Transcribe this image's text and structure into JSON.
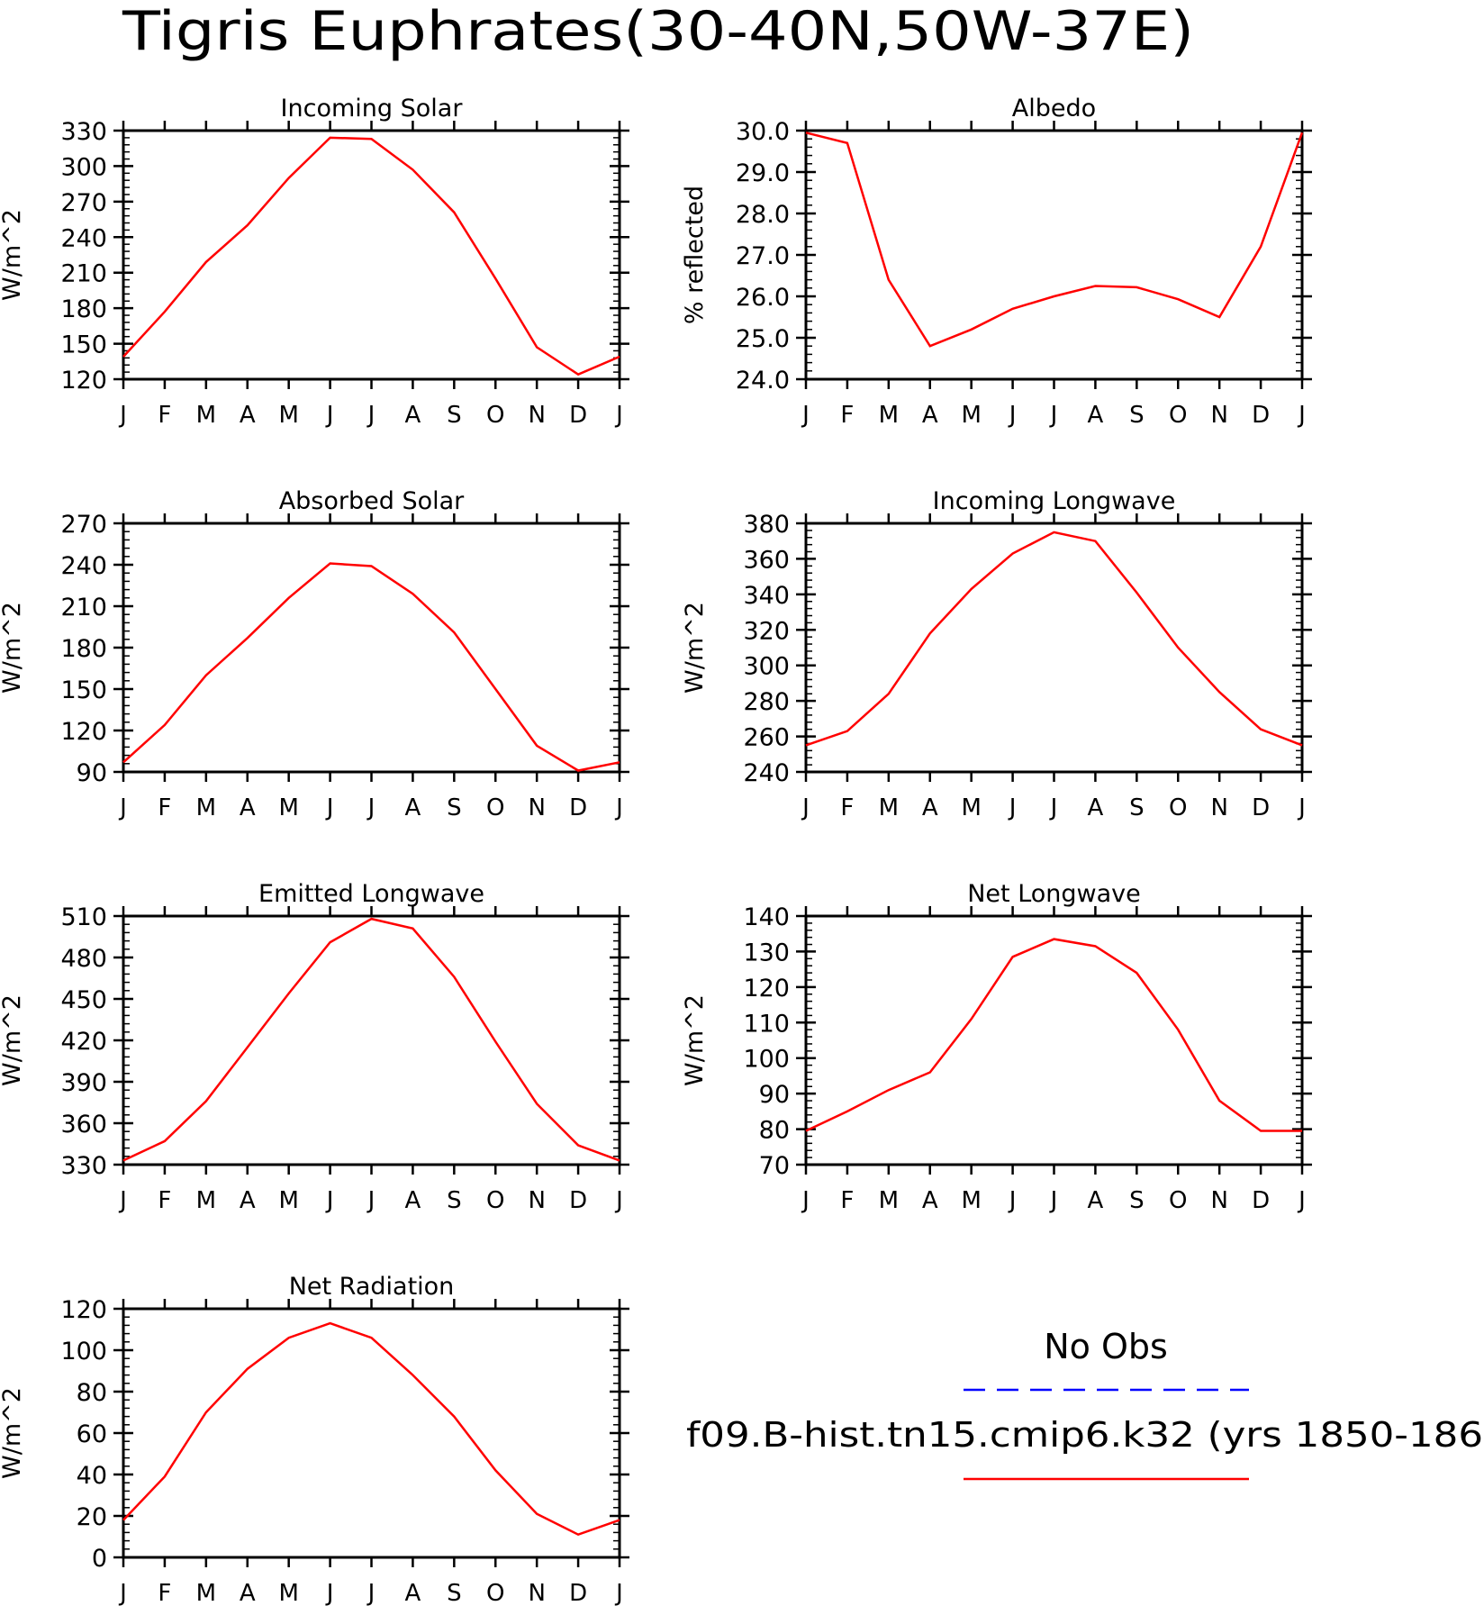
{
  "page_title": "Tigris Euphrates(30-40N,50W-37E)",
  "month_labels": [
    "J",
    "F",
    "M",
    "A",
    "M",
    "J",
    "J",
    "A",
    "S",
    "O",
    "N",
    "D",
    "J"
  ],
  "legend": {
    "obs_label": "No Obs",
    "obs_color": "#0000ff",
    "model_label": "f09.B-hist.tn15.cmip6.k32 (yrs 1850-186",
    "model_color": "#ff0000"
  },
  "chart_data": [
    {
      "type": "line",
      "title": "Incoming Solar",
      "ylabel": "W/m^2",
      "ylim": [
        120,
        330
      ],
      "yticks": [
        120,
        150,
        180,
        210,
        240,
        270,
        300,
        330
      ],
      "ytick_labels": [
        "120",
        "150",
        "180",
        "210",
        "240",
        "270",
        "300",
        "330"
      ],
      "x": [
        "J",
        "F",
        "M",
        "A",
        "M",
        "J",
        "J",
        "A",
        "S",
        "O",
        "N",
        "D",
        "J"
      ],
      "series": [
        {
          "color": "#ff0000",
          "values": [
            139,
            177,
            219,
            250,
            290,
            324,
            323,
            297,
            261,
            205,
            147,
            124,
            139
          ]
        }
      ]
    },
    {
      "type": "line",
      "title": "Albedo",
      "ylabel": "% reflected",
      "ylim": [
        24.0,
        30.0
      ],
      "yticks": [
        24.0,
        25.0,
        26.0,
        27.0,
        28.0,
        29.0,
        30.0
      ],
      "ytick_labels": [
        "24.0",
        "25.0",
        "26.0",
        "27.0",
        "28.0",
        "29.0",
        "30.0"
      ],
      "x": [
        "J",
        "F",
        "M",
        "A",
        "M",
        "J",
        "J",
        "A",
        "S",
        "O",
        "N",
        "D",
        "J"
      ],
      "series": [
        {
          "color": "#ff0000",
          "values": [
            29.95,
            29.7,
            26.4,
            24.8,
            25.2,
            25.7,
            26.0,
            26.25,
            26.22,
            25.93,
            25.5,
            27.2,
            29.95
          ]
        }
      ]
    },
    {
      "type": "line",
      "title": "Absorbed Solar",
      "ylabel": "W/m^2",
      "ylim": [
        90,
        270
      ],
      "yticks": [
        90,
        120,
        150,
        180,
        210,
        240,
        270
      ],
      "ytick_labels": [
        "90",
        "120",
        "150",
        "180",
        "210",
        "240",
        "270"
      ],
      "x": [
        "J",
        "F",
        "M",
        "A",
        "M",
        "J",
        "J",
        "A",
        "S",
        "O",
        "N",
        "D",
        "J"
      ],
      "series": [
        {
          "color": "#ff0000",
          "values": [
            97,
            124,
            160,
            187,
            216,
            241,
            239,
            219,
            191,
            150,
            109,
            91,
            97
          ]
        }
      ]
    },
    {
      "type": "line",
      "title": "Incoming Longwave",
      "ylabel": "W/m^2",
      "ylim": [
        240,
        380
      ],
      "yticks": [
        240,
        260,
        280,
        300,
        320,
        340,
        360,
        380
      ],
      "ytick_labels": [
        "240",
        "260",
        "280",
        "300",
        "320",
        "340",
        "360",
        "380"
      ],
      "x": [
        "J",
        "F",
        "M",
        "A",
        "M",
        "J",
        "J",
        "A",
        "S",
        "O",
        "N",
        "D",
        "J"
      ],
      "series": [
        {
          "color": "#ff0000",
          "values": [
            255,
            263,
            284,
            318,
            343,
            363,
            375,
            370,
            341,
            310,
            285,
            264,
            255
          ]
        }
      ]
    },
    {
      "type": "line",
      "title": "Emitted Longwave",
      "ylabel": "W/m^2",
      "ylim": [
        330,
        510
      ],
      "yticks": [
        330,
        360,
        390,
        420,
        450,
        480,
        510
      ],
      "ytick_labels": [
        "330",
        "360",
        "390",
        "420",
        "450",
        "480",
        "510"
      ],
      "x": [
        "J",
        "F",
        "M",
        "A",
        "M",
        "J",
        "J",
        "A",
        "S",
        "O",
        "N",
        "D",
        "J"
      ],
      "series": [
        {
          "color": "#ff0000",
          "values": [
            333,
            347,
            376,
            415,
            454,
            491,
            508,
            501,
            466,
            419,
            374,
            344,
            333
          ]
        }
      ]
    },
    {
      "type": "line",
      "title": "Net Longwave",
      "ylabel": "W/m^2",
      "ylim": [
        70,
        140
      ],
      "yticks": [
        70,
        80,
        90,
        100,
        110,
        120,
        130,
        140
      ],
      "ytick_labels": [
        "70",
        "80",
        "90",
        "100",
        "110",
        "120",
        "130",
        "140"
      ],
      "x": [
        "J",
        "F",
        "M",
        "A",
        "M",
        "J",
        "J",
        "A",
        "S",
        "O",
        "N",
        "D",
        "J"
      ],
      "series": [
        {
          "color": "#ff0000",
          "values": [
            79.5,
            85,
            91,
            96,
            111,
            128.5,
            133.5,
            131.5,
            124,
            108,
            88,
            79.5,
            79.5
          ]
        }
      ]
    },
    {
      "type": "line",
      "title": "Net Radiation",
      "ylabel": "W/m^2",
      "ylim": [
        0,
        120
      ],
      "yticks": [
        0,
        20,
        40,
        60,
        80,
        100,
        120
      ],
      "ytick_labels": [
        "0",
        "20",
        "40",
        "60",
        "80",
        "100",
        "120"
      ],
      "x": [
        "J",
        "F",
        "M",
        "A",
        "M",
        "J",
        "J",
        "A",
        "S",
        "O",
        "N",
        "D",
        "J"
      ],
      "series": [
        {
          "color": "#ff0000",
          "values": [
            18,
            39,
            70,
            91,
            106,
            113,
            106,
            88,
            68,
            42,
            21,
            11,
            18
          ]
        }
      ]
    }
  ]
}
